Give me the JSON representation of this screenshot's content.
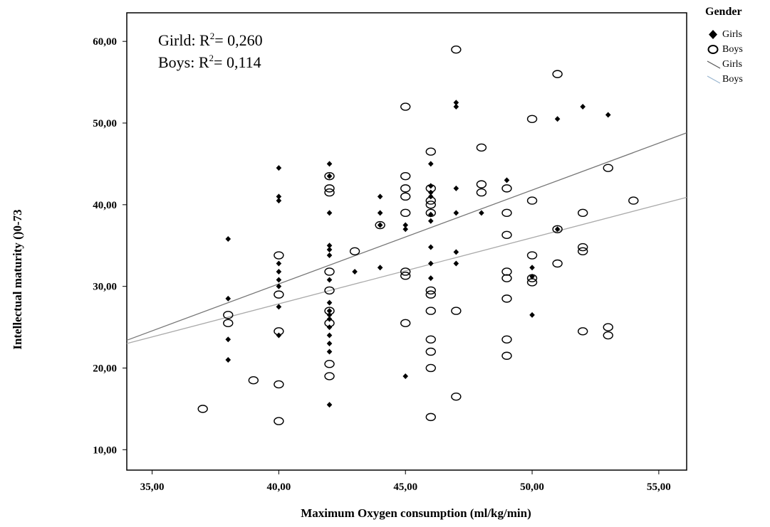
{
  "chart_data": {
    "type": "scatter",
    "title": "",
    "xlabel": "Maximum Oxygen consumption (ml/kg/min)",
    "ylabel": "Intellectual maturity ()0-73",
    "xlim": [
      34,
      56.1
    ],
    "ylim": [
      7.5,
      63.5
    ],
    "xticks": [
      35,
      40,
      45,
      50,
      55
    ],
    "xtick_labels": [
      "35,00",
      "40,00",
      "45,00",
      "50,00",
      "55,00"
    ],
    "yticks": [
      10,
      20,
      30,
      40,
      50,
      60
    ],
    "ytick_labels": [
      "10,00",
      "20,00",
      "30,00",
      "40,00",
      "50,00",
      "60,00"
    ],
    "grid": false,
    "legend_position": "outside-right",
    "annotations": [
      {
        "pre": "Girld: R",
        "sup": "2",
        "post": "= 0,260"
      },
      {
        "pre": "Boys: R",
        "sup": "2",
        "post": "= 0,114"
      }
    ],
    "series": [
      {
        "name": "Girls",
        "marker": "diamond",
        "color": "#000000",
        "points": [
          [
            38,
            35.8
          ],
          [
            38,
            28.5
          ],
          [
            38,
            23.5
          ],
          [
            38,
            21
          ],
          [
            40,
            44.5
          ],
          [
            40,
            41
          ],
          [
            40,
            40.5
          ],
          [
            40,
            32.8
          ],
          [
            40,
            31.8
          ],
          [
            40,
            30.8
          ],
          [
            40,
            30
          ],
          [
            40,
            27.5
          ],
          [
            40,
            24
          ],
          [
            42,
            45
          ],
          [
            42,
            43.5
          ],
          [
            42,
            39
          ],
          [
            42,
            35
          ],
          [
            42,
            34.5
          ],
          [
            42,
            33.8
          ],
          [
            42,
            30.8
          ],
          [
            42,
            28
          ],
          [
            42,
            27
          ],
          [
            42,
            26.5
          ],
          [
            42,
            26
          ],
          [
            42,
            25
          ],
          [
            42,
            24
          ],
          [
            42,
            23
          ],
          [
            42,
            22
          ],
          [
            42,
            15.5
          ],
          [
            43,
            31.8
          ],
          [
            44,
            41
          ],
          [
            44,
            39
          ],
          [
            44,
            37.5
          ],
          [
            44,
            32.3
          ],
          [
            45,
            37.5
          ],
          [
            45,
            37
          ],
          [
            45,
            19
          ],
          [
            46,
            45
          ],
          [
            46,
            42.3
          ],
          [
            46,
            41.5
          ],
          [
            46,
            41
          ],
          [
            46,
            38.8
          ],
          [
            46,
            38
          ],
          [
            46,
            34.8
          ],
          [
            46,
            32.8
          ],
          [
            46,
            31
          ],
          [
            47,
            52.5
          ],
          [
            47,
            52
          ],
          [
            47,
            42
          ],
          [
            47,
            39
          ],
          [
            47,
            34.2
          ],
          [
            47,
            32.8
          ],
          [
            48,
            39
          ],
          [
            49,
            43
          ],
          [
            50,
            32.3
          ],
          [
            50,
            31.2
          ],
          [
            50,
            26.5
          ],
          [
            51,
            50.5
          ],
          [
            51,
            37
          ],
          [
            52,
            52
          ],
          [
            53,
            51
          ]
        ]
      },
      {
        "name": "Boys",
        "marker": "circle",
        "color": "#000000",
        "points": [
          [
            37,
            15
          ],
          [
            38,
            26.5
          ],
          [
            38,
            25.5
          ],
          [
            39,
            18.5
          ],
          [
            40,
            33.8
          ],
          [
            40,
            29
          ],
          [
            40,
            24.5
          ],
          [
            40,
            18
          ],
          [
            40,
            13.5
          ],
          [
            42,
            43.5
          ],
          [
            42,
            42
          ],
          [
            42,
            41.5
          ],
          [
            42,
            31.8
          ],
          [
            42,
            29.5
          ],
          [
            42,
            27
          ],
          [
            42,
            25.5
          ],
          [
            42,
            20.5
          ],
          [
            42,
            19
          ],
          [
            43,
            34.3
          ],
          [
            44,
            37.5
          ],
          [
            45,
            52
          ],
          [
            45,
            43.5
          ],
          [
            45,
            42
          ],
          [
            45,
            41
          ],
          [
            45,
            39
          ],
          [
            45,
            31.8
          ],
          [
            45,
            31.3
          ],
          [
            45,
            25.5
          ],
          [
            46,
            46.5
          ],
          [
            46,
            42
          ],
          [
            46,
            40.5
          ],
          [
            46,
            40
          ],
          [
            46,
            39
          ],
          [
            46,
            29.5
          ],
          [
            46,
            29
          ],
          [
            46,
            27
          ],
          [
            46,
            23.5
          ],
          [
            46,
            22
          ],
          [
            46,
            20
          ],
          [
            46,
            14
          ],
          [
            47,
            59
          ],
          [
            47,
            27
          ],
          [
            47,
            16.5
          ],
          [
            48,
            47
          ],
          [
            48,
            42.5
          ],
          [
            48,
            41.5
          ],
          [
            49,
            42
          ],
          [
            49,
            39
          ],
          [
            49,
            36.3
          ],
          [
            49,
            31.8
          ],
          [
            49,
            31
          ],
          [
            49,
            28.5
          ],
          [
            49,
            23.5
          ],
          [
            49,
            21.5
          ],
          [
            50,
            50.5
          ],
          [
            50,
            40.5
          ],
          [
            50,
            33.8
          ],
          [
            50,
            31
          ],
          [
            50,
            30.5
          ],
          [
            51,
            56
          ],
          [
            51,
            32.8
          ],
          [
            51,
            37
          ],
          [
            52,
            39
          ],
          [
            52,
            34.8
          ],
          [
            52,
            34.3
          ],
          [
            52,
            24.5
          ],
          [
            53,
            44.5
          ],
          [
            53,
            25
          ],
          [
            53,
            24
          ],
          [
            54,
            40.5
          ]
        ]
      }
    ],
    "fit_lines": [
      {
        "name": "Girls",
        "color": "#777777",
        "x": [
          34,
          56.1
        ],
        "y": [
          23.4,
          48.8
        ]
      },
      {
        "name": "Boys",
        "color": "#aaaaaa",
        "x": [
          34,
          56.1
        ],
        "y": [
          23.0,
          40.9
        ]
      }
    ]
  },
  "legend": {
    "title": "Gender",
    "items": [
      {
        "label": "Girls",
        "icon": "diamond-filled"
      },
      {
        "label": "Boys",
        "icon": "circle-open"
      },
      {
        "label": "Girls",
        "icon": "line-dark"
      },
      {
        "label": "Boys",
        "icon": "line-light-blue"
      }
    ],
    "line_colors": {
      "girls": "#555555",
      "boys": "#9ab6d0"
    }
  }
}
